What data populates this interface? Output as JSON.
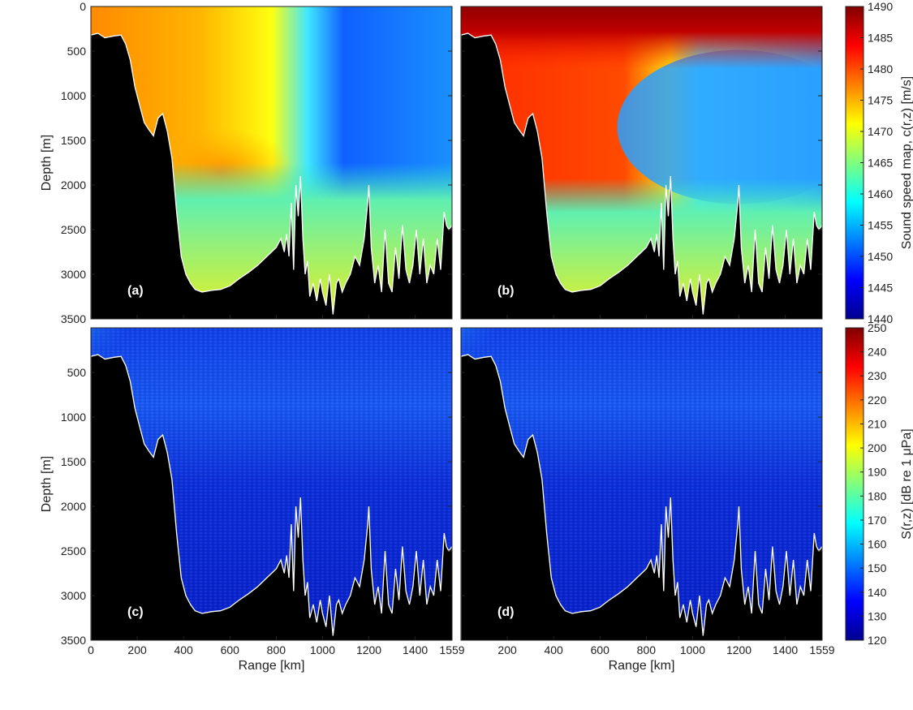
{
  "colors": {
    "seafloor": "#000000",
    "bathymetry_line": "#ffffff",
    "jet": [
      "#00008f",
      "#0000ff",
      "#00ffff",
      "#ffff00",
      "#ff0000",
      "#800000"
    ]
  },
  "chart_data": [
    {
      "type": "heatmap",
      "panel": "(a)",
      "quantity": "sound speed",
      "xlabel": "",
      "ylabel": "Depth [m]",
      "xlim": [
        0,
        1559
      ],
      "ylim": [
        0,
        3500
      ],
      "y_inverted": true,
      "yticks": [
        "0",
        "500",
        "1000",
        "1500",
        "2000",
        "2500",
        "3000",
        "3500"
      ],
      "colorbar": "sound_speed",
      "description_values": {
        "min": 1448,
        "max": 1480
      }
    },
    {
      "type": "heatmap",
      "panel": "(b)",
      "quantity": "sound speed",
      "xlabel": "",
      "ylabel": "",
      "xlim": [
        0,
        1559
      ],
      "ylim": [
        0,
        3500
      ],
      "y_inverted": true,
      "colorbar": "sound_speed",
      "description_values": {
        "min": 1452,
        "max": 1490
      }
    },
    {
      "type": "heatmap",
      "panel": "(c)",
      "quantity": "sensitivity",
      "xlabel": "Range [km]",
      "ylabel": "Depth [m]",
      "xlim": [
        0,
        1559
      ],
      "ylim": [
        0,
        3500
      ],
      "y_inverted": true,
      "xticks": [
        "0",
        "200",
        "400",
        "600",
        "800",
        "1000",
        "1200",
        "1400",
        "1559"
      ],
      "yticks": [
        "500",
        "1000",
        "1500",
        "2000",
        "2500",
        "3000",
        "3500"
      ],
      "colorbar": "sensitivity"
    },
    {
      "type": "heatmap",
      "panel": "(d)",
      "quantity": "sensitivity",
      "xlabel": "Range [km]",
      "ylabel": "",
      "xlim": [
        0,
        1559
      ],
      "ylim": [
        0,
        3500
      ],
      "y_inverted": true,
      "xticks": [
        "200",
        "400",
        "600",
        "800",
        "1000",
        "1200",
        "1400",
        "1559"
      ],
      "colorbar": "sensitivity"
    }
  ],
  "bathymetry": {
    "range_km": [
      0,
      30,
      60,
      100,
      130,
      150,
      170,
      190,
      210,
      230,
      250,
      270,
      290,
      310,
      330,
      350,
      370,
      390,
      410,
      430,
      450,
      480,
      520,
      560,
      600,
      640,
      680,
      720,
      760,
      800,
      820,
      835,
      845,
      855,
      865,
      875,
      885,
      895,
      905,
      915,
      925,
      935,
      945,
      960,
      975,
      990,
      1000,
      1015,
      1030,
      1045,
      1060,
      1070,
      1085,
      1100,
      1120,
      1140,
      1160,
      1180,
      1195,
      1200,
      1210,
      1225,
      1240,
      1255,
      1270,
      1285,
      1300,
      1315,
      1330,
      1345,
      1360,
      1375,
      1390,
      1405,
      1420,
      1435,
      1450,
      1465,
      1480,
      1495,
      1510,
      1525,
      1535,
      1545,
      1559
    ],
    "depth_m": [
      320,
      300,
      350,
      330,
      320,
      420,
      600,
      900,
      1100,
      1300,
      1380,
      1450,
      1250,
      1200,
      1400,
      1700,
      2300,
      2800,
      3000,
      3100,
      3170,
      3200,
      3180,
      3170,
      3130,
      3050,
      2980,
      2900,
      2800,
      2700,
      2600,
      2750,
      2550,
      2800,
      2200,
      2950,
      2000,
      2350,
      1900,
      2600,
      3000,
      2850,
      3250,
      3100,
      3300,
      3050,
      3200,
      3350,
      3000,
      3450,
      3100,
      3050,
      3200,
      3100,
      3000,
      2800,
      2900,
      2600,
      2200,
      2000,
      2700,
      3100,
      2900,
      3200,
      2500,
      3100,
      3200,
      2700,
      3050,
      2450,
      2950,
      3100,
      2900,
      2500,
      3000,
      2600,
      3100,
      2900,
      3000,
      2600,
      2950,
      2300,
      2450,
      2500,
      2450
    ]
  },
  "colorbars": {
    "sound_speed": {
      "label": "Sound speed map, c(r,z) [m/s]",
      "range": [
        1440,
        1490
      ],
      "ticks": [
        "1440",
        "1445",
        "1450",
        "1455",
        "1460",
        "1465",
        "1470",
        "1475",
        "1480",
        "1485",
        "1490"
      ]
    },
    "sensitivity": {
      "label": "S(r,z) [dB re 1 μPa]",
      "range": [
        120,
        250
      ],
      "ticks": [
        "120",
        "130",
        "140",
        "150",
        "160",
        "170",
        "180",
        "190",
        "200",
        "210",
        "220",
        "230",
        "240",
        "250"
      ]
    }
  },
  "labels": {
    "panel_a": "(a)",
    "panel_b": "(b)",
    "panel_c": "(c)",
    "panel_d": "(d)",
    "xlabel_c": "Range [km]",
    "xlabel_d": "Range [km]",
    "ylabel_a": "Depth [m]",
    "ylabel_c": "Depth [m]",
    "cbar_top_label": "Sound speed map, c(r,z) [m/s]",
    "cbar_bottom_label": "S(r,z) [dB re 1 μPa]"
  }
}
